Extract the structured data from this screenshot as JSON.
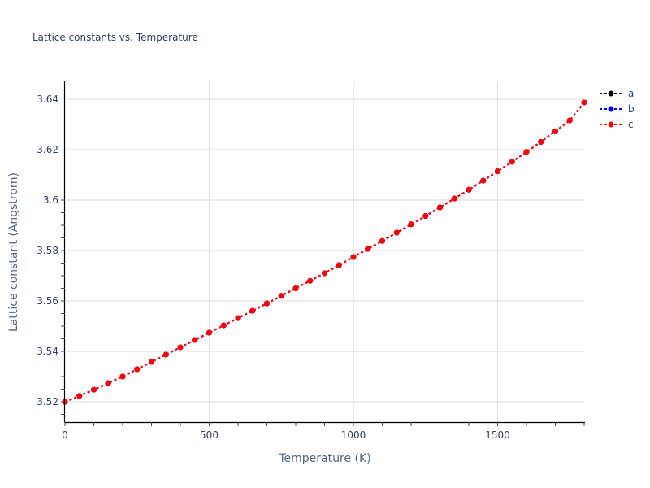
{
  "chart_data": {
    "type": "line",
    "title": "Lattice constants vs. Temperature",
    "xlabel": "Temperature (K)",
    "ylabel": "Lattice constant (Angstrom)",
    "xlim": [
      0,
      1800
    ],
    "ylim": [
      3.512,
      3.647
    ],
    "x_ticks": [
      0,
      500,
      1000,
      1500
    ],
    "x_tick_labels": [
      "0",
      "500",
      "1000",
      "1500"
    ],
    "y_ticks": [
      3.52,
      3.54,
      3.56,
      3.58,
      3.6,
      3.62,
      3.64
    ],
    "y_tick_labels": [
      "3.52",
      "3.54",
      "3.56",
      "3.58",
      "3.6",
      "3.62",
      "3.64"
    ],
    "grid": true,
    "legend_position": "top-right-outside",
    "x": [
      0,
      50,
      100,
      150,
      200,
      250,
      300,
      350,
      400,
      450,
      500,
      550,
      600,
      650,
      700,
      750,
      800,
      850,
      900,
      950,
      1000,
      1050,
      1100,
      1150,
      1200,
      1250,
      1300,
      1350,
      1400,
      1450,
      1500,
      1550,
      1600,
      1650,
      1700,
      1750,
      1800
    ],
    "series": [
      {
        "name": "a",
        "color": "#000000",
        "values": [
          3.52,
          3.5223,
          3.5248,
          3.5274,
          3.53,
          3.5329,
          3.5358,
          3.5387,
          3.5416,
          3.5445,
          3.5474,
          3.5503,
          3.5532,
          3.5561,
          3.559,
          3.562,
          3.565,
          3.568,
          3.571,
          3.5742,
          3.5774,
          3.5806,
          3.5838,
          3.5871,
          3.5904,
          3.5937,
          3.5971,
          3.6006,
          3.6041,
          3.6077,
          3.6114,
          3.6152,
          3.6191,
          3.6231,
          3.6273,
          3.6316,
          3.6387
        ]
      },
      {
        "name": "b",
        "color": "#0000ff",
        "values": [
          3.52,
          3.5223,
          3.5248,
          3.5274,
          3.53,
          3.5329,
          3.5358,
          3.5387,
          3.5416,
          3.5445,
          3.5474,
          3.5503,
          3.5532,
          3.5561,
          3.559,
          3.562,
          3.565,
          3.568,
          3.571,
          3.5742,
          3.5774,
          3.5806,
          3.5838,
          3.5871,
          3.5904,
          3.5937,
          3.5971,
          3.6006,
          3.6041,
          3.6077,
          3.6114,
          3.6152,
          3.6191,
          3.6231,
          3.6273,
          3.6316,
          3.6387
        ]
      },
      {
        "name": "c",
        "color": "#ff0000",
        "values": [
          3.52,
          3.5223,
          3.5248,
          3.5274,
          3.53,
          3.5329,
          3.5358,
          3.5387,
          3.5416,
          3.5445,
          3.5474,
          3.5503,
          3.5532,
          3.5561,
          3.559,
          3.562,
          3.565,
          3.568,
          3.571,
          3.5742,
          3.5774,
          3.5806,
          3.5838,
          3.5871,
          3.5904,
          3.5937,
          3.5971,
          3.6006,
          3.6041,
          3.6077,
          3.6114,
          3.6152,
          3.6191,
          3.6231,
          3.6273,
          3.6316,
          3.6387
        ]
      }
    ]
  },
  "legend": {
    "items": [
      {
        "label": "a",
        "color": "#000000"
      },
      {
        "label": "b",
        "color": "#0000ff"
      },
      {
        "label": "c",
        "color": "#ff0000"
      }
    ]
  }
}
